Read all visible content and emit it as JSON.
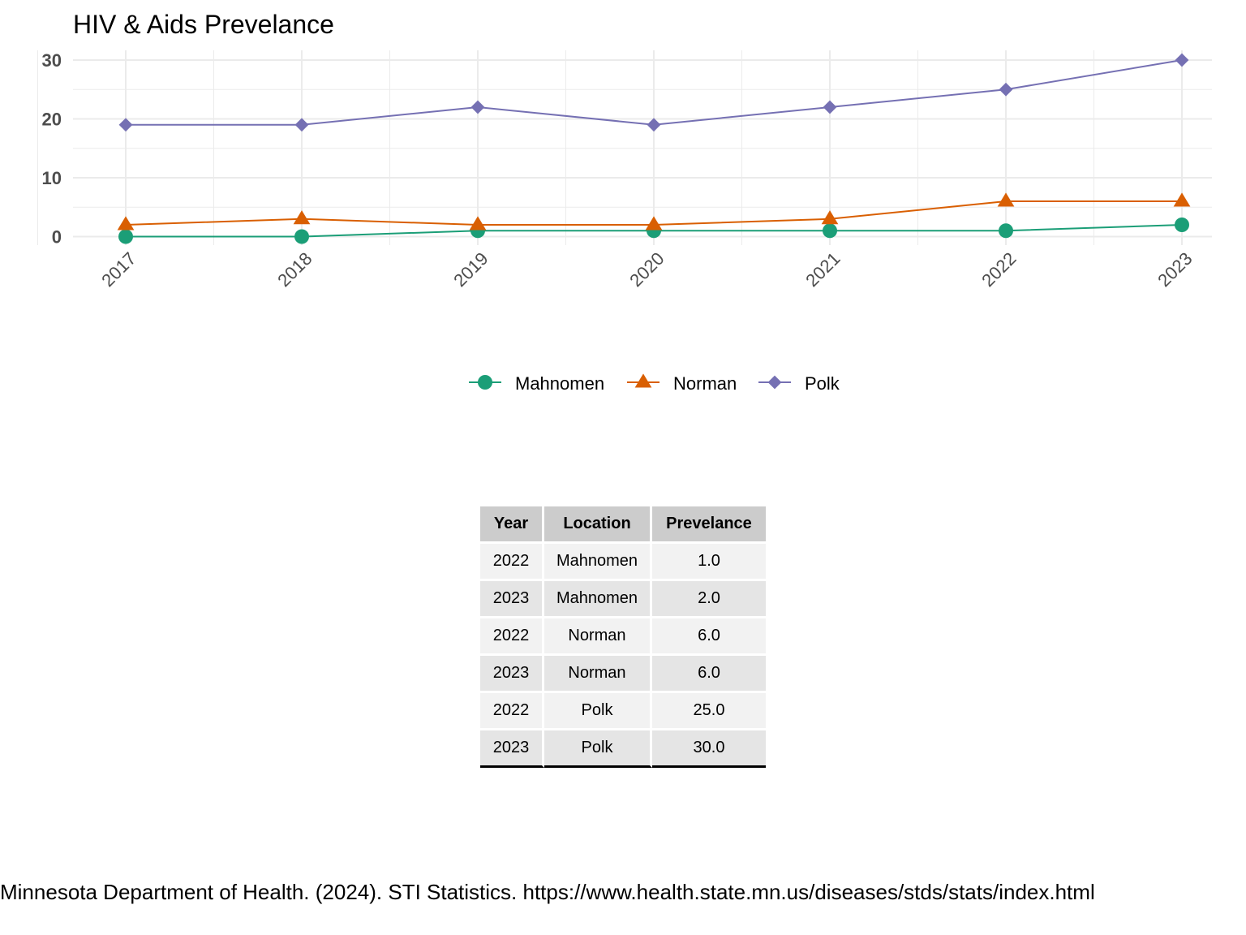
{
  "chart_data": {
    "type": "line",
    "title": "HIV & Aids Prevelance",
    "xlabel": "",
    "ylabel": "",
    "x": [
      "2017",
      "2018",
      "2019",
      "2020",
      "2021",
      "2022",
      "2023"
    ],
    "ylim": [
      0,
      30
    ],
    "yticks": [
      "0",
      "10",
      "20",
      "30"
    ],
    "grid": true,
    "legend_position": "bottom",
    "series": [
      {
        "name": "Mahnomen",
        "color": "#1b9e77",
        "marker": "circle",
        "values": [
          0,
          0,
          1,
          1,
          1,
          1,
          2
        ]
      },
      {
        "name": "Norman",
        "color": "#d95f02",
        "marker": "triangle",
        "values": [
          2,
          3,
          2,
          2,
          3,
          6,
          6
        ]
      },
      {
        "name": "Polk",
        "color": "#7570b3",
        "marker": "diamond",
        "values": [
          19,
          19,
          22,
          19,
          22,
          25,
          30
        ]
      }
    ]
  },
  "table": {
    "headers": [
      "Year",
      "Location",
      "Prevelance"
    ],
    "rows": [
      [
        "2022",
        "Mahnomen",
        "1.0"
      ],
      [
        "2023",
        "Mahnomen",
        "2.0"
      ],
      [
        "2022",
        "Norman",
        "6.0"
      ],
      [
        "2023",
        "Norman",
        "6.0"
      ],
      [
        "2022",
        "Polk",
        "25.0"
      ],
      [
        "2023",
        "Polk",
        "30.0"
      ]
    ]
  },
  "citation": "Minnesota Department of Health. (2024). STI Statistics. https://www.health.state.mn.us/diseases/stds/stats/index.html"
}
